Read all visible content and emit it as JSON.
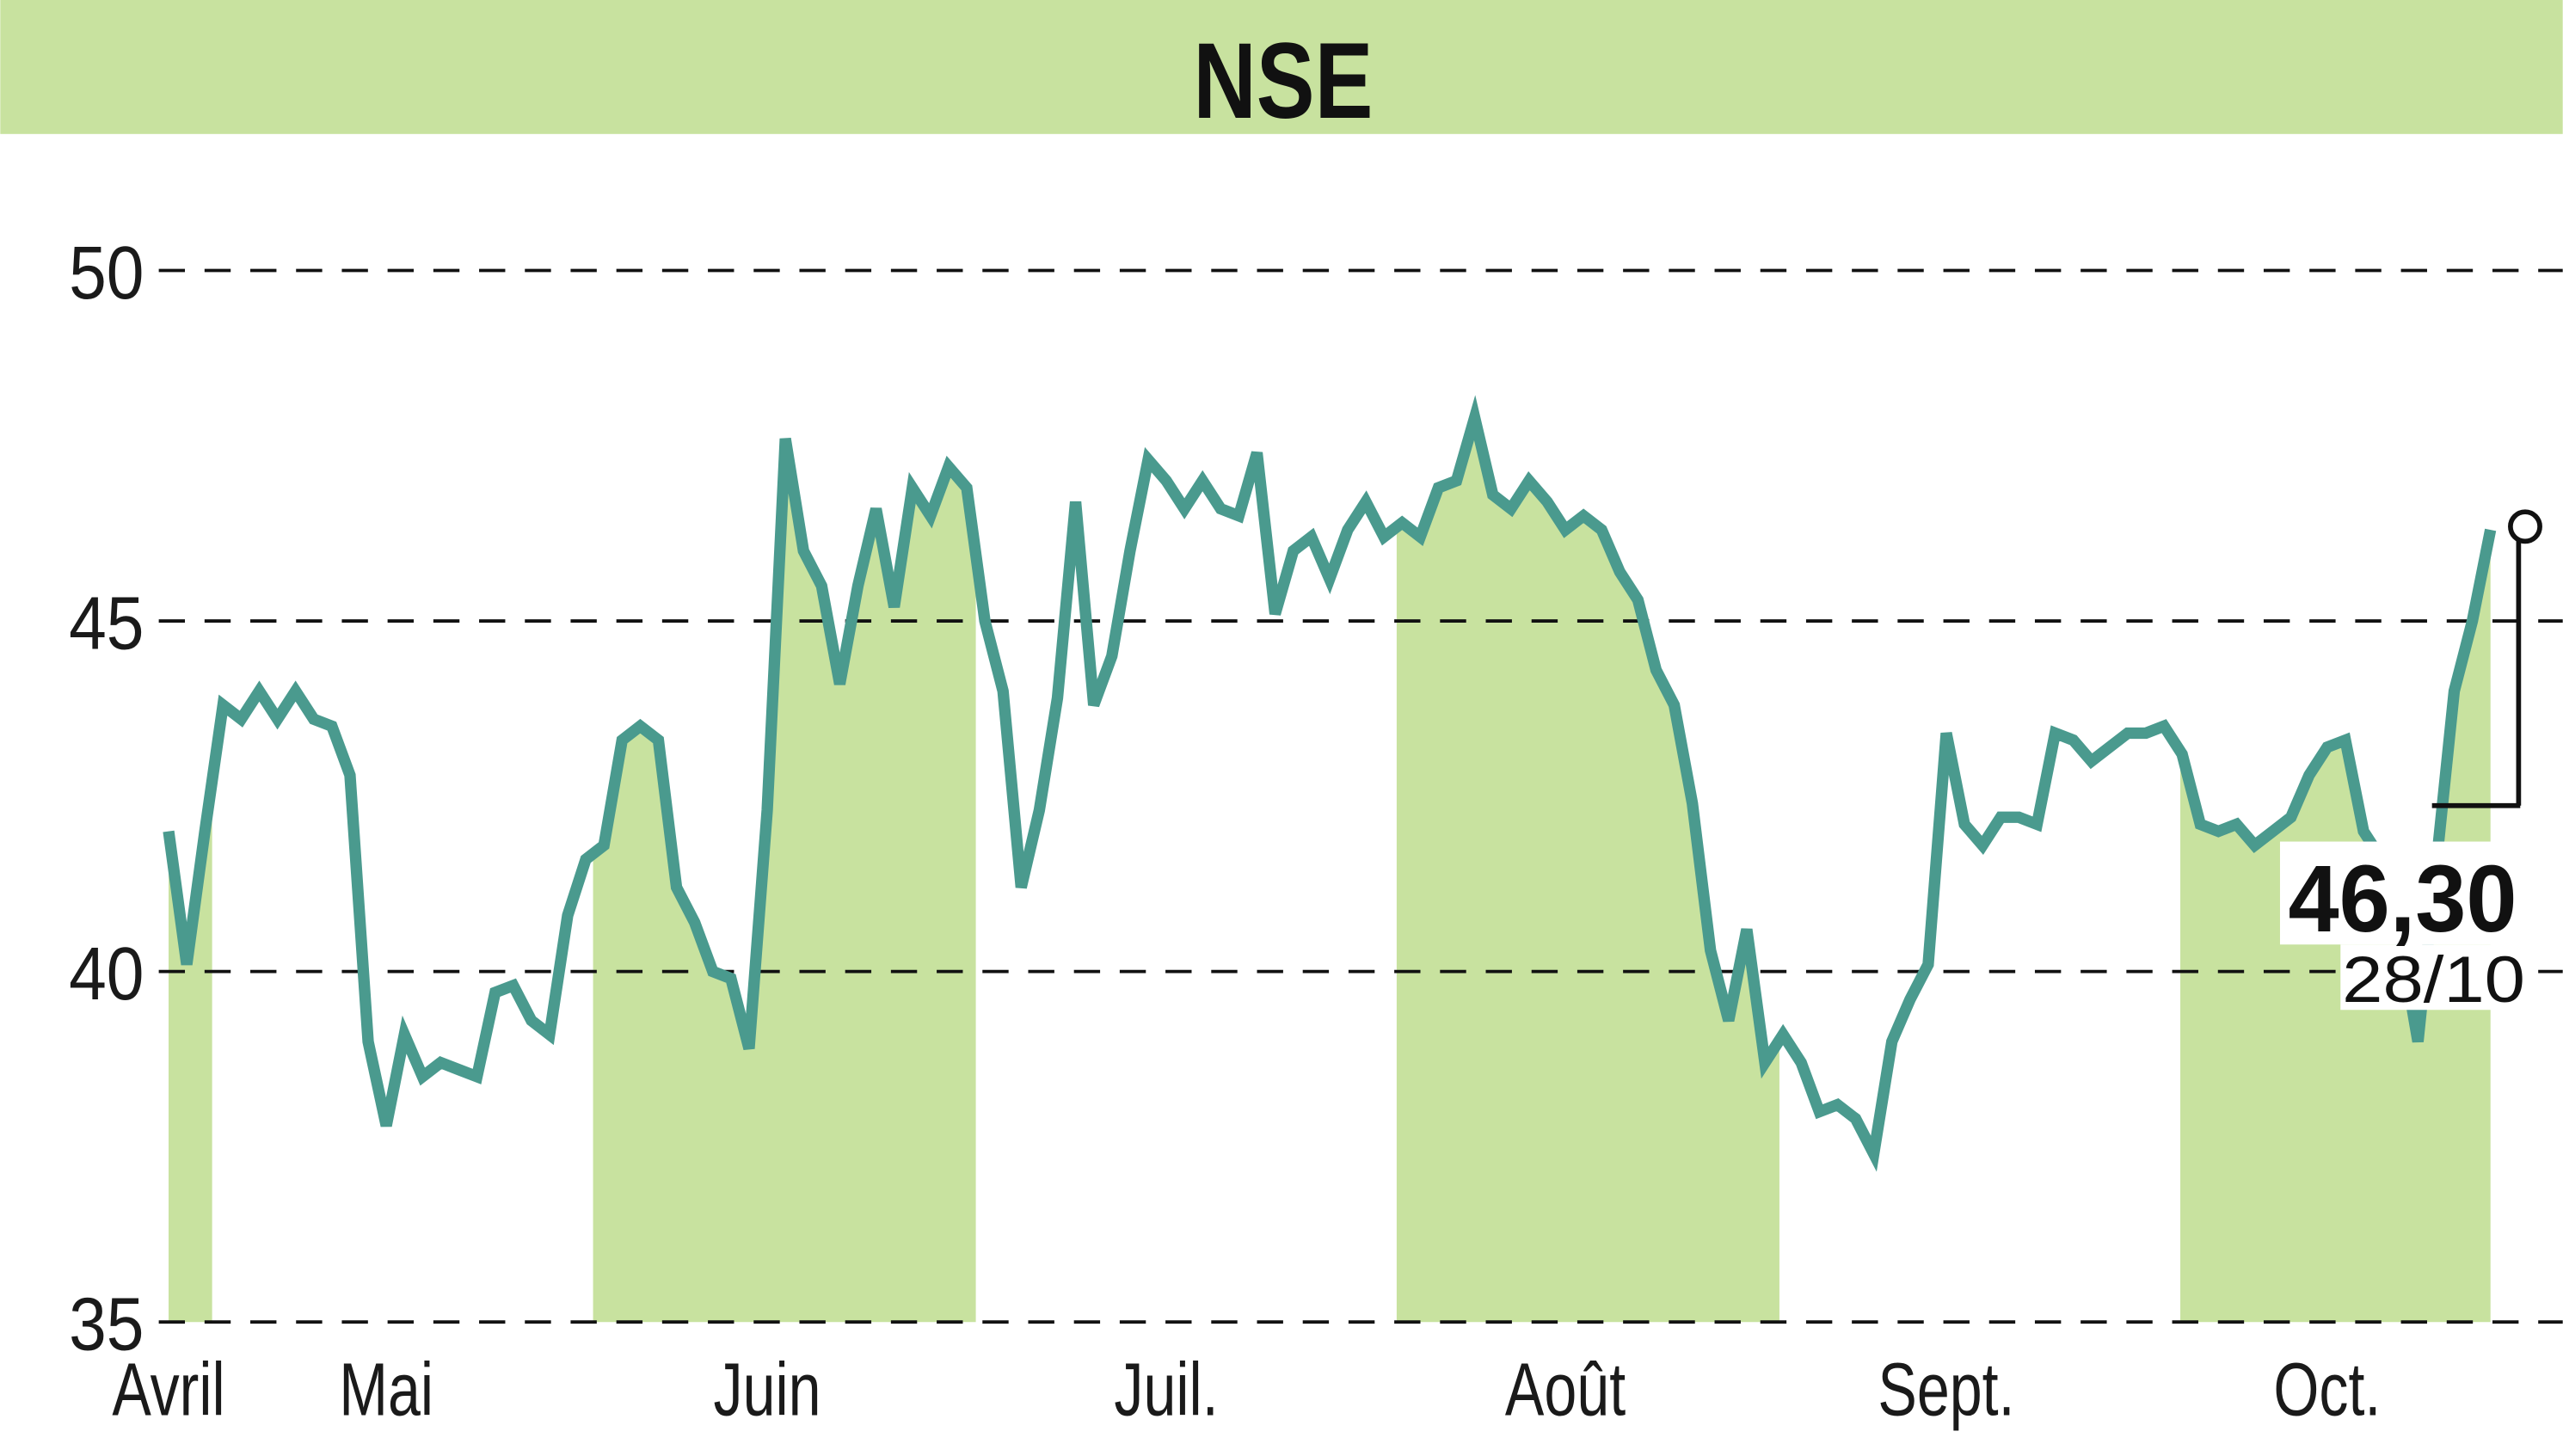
{
  "chart_data": {
    "type": "line",
    "title": "NSE",
    "xlabel": "",
    "ylabel": "",
    "ylim": [
      35,
      50
    ],
    "yticks": [
      50,
      45,
      40,
      35
    ],
    "grid": "horizontal dashed",
    "colors": {
      "header": "#c8e29f",
      "line": "#4a9a8e",
      "band": "#c8e29f",
      "text": "#1a1a1a"
    },
    "x_month_labels": [
      {
        "label": "Avril",
        "index": 0
      },
      {
        "label": "Mai",
        "index": 12
      },
      {
        "label": "Juin",
        "index": 33
      },
      {
        "label": "Juil.",
        "index": 55
      },
      {
        "label": "Août",
        "index": 77
      },
      {
        "label": "Sept.",
        "index": 98
      },
      {
        "label": "Oct.",
        "index": 119
      }
    ],
    "shaded_month_index_ranges": [
      [
        -0.5,
        2.4
      ],
      [
        23.4,
        44.5
      ],
      [
        67.7,
        88.8
      ],
      [
        110.9,
        128.9
      ]
    ],
    "values": [
      42.0,
      40.1,
      42.0,
      43.8,
      43.6,
      44.0,
      43.6,
      44.0,
      43.6,
      43.5,
      42.8,
      39.0,
      37.8,
      39.1,
      38.5,
      38.7,
      38.6,
      38.5,
      39.7,
      39.8,
      39.3,
      39.1,
      40.8,
      41.6,
      41.8,
      43.3,
      43.5,
      43.3,
      41.2,
      40.7,
      40.0,
      39.9,
      38.9,
      42.3,
      47.6,
      46.0,
      45.5,
      44.1,
      45.5,
      46.6,
      45.2,
      46.9,
      46.5,
      47.2,
      46.9,
      45.0,
      44.0,
      41.2,
      42.3,
      43.9,
      46.7,
      43.8,
      44.5,
      46.0,
      47.3,
      47.0,
      46.6,
      47.0,
      46.6,
      46.5,
      47.4,
      45.1,
      46.0,
      46.2,
      45.6,
      46.3,
      46.7,
      46.2,
      46.4,
      46.2,
      46.9,
      47.0,
      47.9,
      46.8,
      46.6,
      47.0,
      46.7,
      46.3,
      46.5,
      46.3,
      45.7,
      45.3,
      44.3,
      43.8,
      42.4,
      40.3,
      39.3,
      40.6,
      38.7,
      39.1,
      38.7,
      38.0,
      38.1,
      37.9,
      37.4,
      39.0,
      39.6,
      40.1,
      43.4,
      42.1,
      41.8,
      42.2,
      42.2,
      42.1,
      43.4,
      43.3,
      43.0,
      43.2,
      43.4,
      43.4,
      43.5,
      43.1,
      42.1,
      42.0,
      42.1,
      41.8,
      42.0,
      42.2,
      42.8,
      43.2,
      43.3,
      42.0,
      41.6,
      40.5,
      39.0,
      41.5,
      44.0,
      45.0,
      46.3
    ],
    "last": {
      "value": "46,30",
      "date": "28/10"
    }
  }
}
